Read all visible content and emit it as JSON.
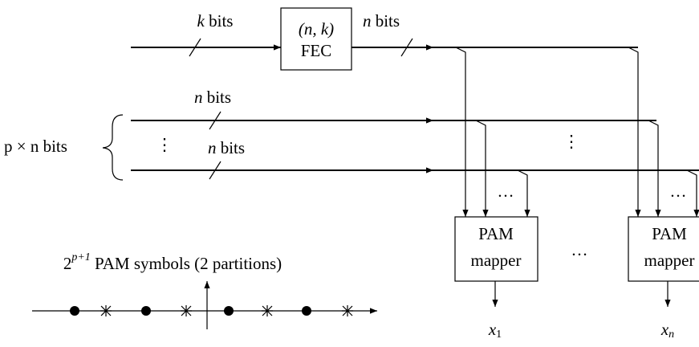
{
  "fec": {
    "input_label": {
      "var": "k",
      "unit": "bits"
    },
    "title": "(n, k)",
    "name": "FEC",
    "output_label": {
      "var": "n",
      "unit": "bits"
    }
  },
  "rows": [
    {
      "var": "n",
      "unit": "bits"
    },
    {
      "var": "n",
      "unit": "bits"
    }
  ],
  "group_label": "p × n bits",
  "vdots": [
    "⋮",
    "⋮"
  ],
  "hdots": [
    "…",
    "…",
    "…"
  ],
  "mappers": [
    {
      "line1": "PAM",
      "line2": "mapper",
      "output": {
        "var": "x",
        "sub": "1"
      }
    },
    {
      "line1": "PAM",
      "line2": "mapper",
      "output": {
        "var": "x",
        "sub": "n"
      }
    }
  ],
  "constellation": {
    "base": "2",
    "sup": "p+1",
    "text": " PAM symbols (2 partitions)"
  }
}
